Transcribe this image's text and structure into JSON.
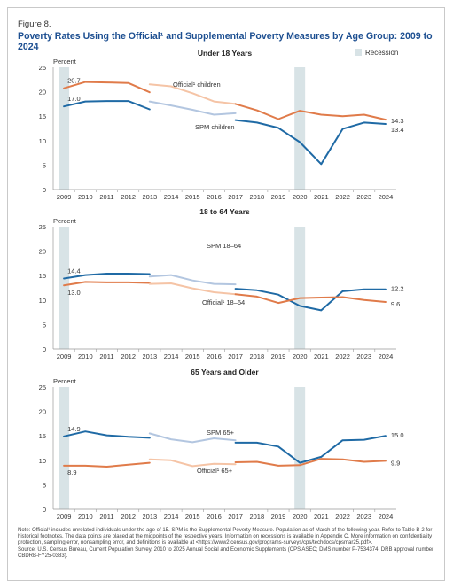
{
  "figure": {
    "label": "Figure 8.",
    "title": "Poverty Rates Using the Official¹ and Supplemental Poverty Measures by Age Group: 2009 to 2024"
  },
  "legend": {
    "recession": "Recession",
    "recession_color": "#d8e3e6"
  },
  "colors": {
    "official": "#e07b4a",
    "official_light": "#f5c4a6",
    "spm": "#1f6aa5",
    "spm_light": "#b3c6e0"
  },
  "chart_data": [
    {
      "type": "line",
      "title": "Under 18 Years",
      "ylabel": "Percent",
      "ylim": [
        0,
        25
      ],
      "yticks": [
        "0",
        "5",
        "10",
        "15",
        "20",
        "25"
      ],
      "x": [
        "2009",
        "2010",
        "2011",
        "2012",
        "2013",
        "2014",
        "2015",
        "2016",
        "2017",
        "2018",
        "2019",
        "2020",
        "2021",
        "2022",
        "2023",
        "2024"
      ],
      "recession": [
        2009,
        2020
      ],
      "series": [
        {
          "name": "Official¹ children",
          "kind": "official",
          "segments": [
            {
              "shade": "dark",
              "x": [
                2009,
                2010,
                2011,
                2012,
                2013
              ],
              "values": [
                20.7,
                22.0,
                21.9,
                21.8,
                19.9
              ]
            },
            {
              "shade": "light",
              "x": [
                2013,
                2014,
                2015,
                2016,
                2017
              ],
              "values": [
                21.5,
                21.1,
                19.7,
                18.0,
                17.5
              ]
            },
            {
              "shade": "dark",
              "x": [
                2017,
                2018,
                2019,
                2020,
                2021,
                2022,
                2023,
                2024
              ],
              "values": [
                17.5,
                16.2,
                14.4,
                16.1,
                15.3,
                15.0,
                15.3,
                14.3
              ]
            }
          ],
          "first_label": "20.7",
          "last_label": "14.3"
        },
        {
          "name": "SPM children",
          "kind": "spm",
          "segments": [
            {
              "shade": "dark",
              "x": [
                2009,
                2010,
                2011,
                2012,
                2013
              ],
              "values": [
                17.0,
                18.0,
                18.1,
                18.1,
                16.4
              ]
            },
            {
              "shade": "light",
              "x": [
                2013,
                2014,
                2015,
                2016,
                2017
              ],
              "values": [
                18.0,
                17.2,
                16.3,
                15.3,
                15.6
              ]
            },
            {
              "shade": "dark",
              "x": [
                2017,
                2018,
                2019,
                2020,
                2021,
                2022,
                2023,
                2024
              ],
              "values": [
                14.2,
                13.7,
                12.6,
                9.7,
                5.2,
                12.4,
                13.7,
                13.4
              ]
            }
          ],
          "first_label": "17.0",
          "last_label": "13.4"
        }
      ]
    },
    {
      "type": "line",
      "title": "18 to 64 Years",
      "ylabel": "Percent",
      "ylim": [
        0,
        25
      ],
      "yticks": [
        "0",
        "5",
        "10",
        "15",
        "20",
        "25"
      ],
      "x": [
        "2009",
        "2010",
        "2011",
        "2012",
        "2013",
        "2014",
        "2015",
        "2016",
        "2017",
        "2018",
        "2019",
        "2020",
        "2021",
        "2022",
        "2023",
        "2024"
      ],
      "recession": [
        2009,
        2020
      ],
      "series": [
        {
          "name": "SPM 18–64",
          "kind": "spm",
          "segments": [
            {
              "shade": "dark",
              "x": [
                2009,
                2010,
                2011,
                2012,
                2013
              ],
              "values": [
                14.4,
                15.1,
                15.4,
                15.4,
                15.3
              ]
            },
            {
              "shade": "light",
              "x": [
                2013,
                2014,
                2015,
                2016,
                2017
              ],
              "values": [
                14.8,
                15.1,
                14.0,
                13.3,
                13.2
              ]
            },
            {
              "shade": "dark",
              "x": [
                2017,
                2018,
                2019,
                2020,
                2021,
                2022,
                2023,
                2024
              ],
              "values": [
                12.3,
                12.0,
                11.1,
                8.8,
                7.9,
                11.8,
                12.2,
                12.2
              ]
            }
          ],
          "first_label": "14.4",
          "last_label": "12.2"
        },
        {
          "name": "Official¹ 18–64",
          "kind": "official",
          "segments": [
            {
              "shade": "dark",
              "x": [
                2009,
                2010,
                2011,
                2012,
                2013
              ],
              "values": [
                13.0,
                13.7,
                13.6,
                13.6,
                13.5
              ]
            },
            {
              "shade": "light",
              "x": [
                2013,
                2014,
                2015,
                2016,
                2017
              ],
              "values": [
                13.3,
                13.4,
                12.4,
                11.6,
                11.2
              ]
            },
            {
              "shade": "dark",
              "x": [
                2017,
                2018,
                2019,
                2020,
                2021,
                2022,
                2023,
                2024
              ],
              "values": [
                11.2,
                10.7,
                9.4,
                10.4,
                10.5,
                10.6,
                10.0,
                9.6
              ]
            }
          ],
          "first_label": "13.0",
          "last_label": "9.6"
        }
      ]
    },
    {
      "type": "line",
      "title": "65 Years and Older",
      "ylabel": "Percent",
      "ylim": [
        0,
        25
      ],
      "yticks": [
        "0",
        "5",
        "10",
        "15",
        "20",
        "25"
      ],
      "x": [
        "2009",
        "2010",
        "2011",
        "2012",
        "2013",
        "2014",
        "2015",
        "2016",
        "2017",
        "2018",
        "2019",
        "2020",
        "2021",
        "2022",
        "2023",
        "2024"
      ],
      "recession": [
        2009,
        2020
      ],
      "series": [
        {
          "name": "SPM 65+",
          "kind": "spm",
          "segments": [
            {
              "shade": "dark",
              "x": [
                2009,
                2010,
                2011,
                2012,
                2013
              ],
              "values": [
                14.9,
                15.9,
                15.1,
                14.8,
                14.6
              ]
            },
            {
              "shade": "light",
              "x": [
                2013,
                2014,
                2015,
                2016,
                2017
              ],
              "values": [
                15.5,
                14.3,
                13.7,
                14.5,
                14.1
              ]
            },
            {
              "shade": "dark",
              "x": [
                2017,
                2018,
                2019,
                2020,
                2021,
                2022,
                2023,
                2024
              ],
              "values": [
                13.6,
                13.6,
                12.8,
                9.5,
                10.7,
                14.1,
                14.2,
                15.0
              ]
            }
          ],
          "first_label": "14.9",
          "last_label": "15.0"
        },
        {
          "name": "Official¹ 65+",
          "kind": "official",
          "segments": [
            {
              "shade": "dark",
              "x": [
                2009,
                2010,
                2011,
                2012,
                2013
              ],
              "values": [
                8.9,
                8.9,
                8.7,
                9.1,
                9.5
              ]
            },
            {
              "shade": "light",
              "x": [
                2013,
                2014,
                2015,
                2016,
                2017
              ],
              "values": [
                10.2,
                10.0,
                8.8,
                9.3,
                9.2
              ]
            },
            {
              "shade": "dark",
              "x": [
                2017,
                2018,
                2019,
                2020,
                2021,
                2022,
                2023,
                2024
              ],
              "values": [
                9.6,
                9.7,
                8.9,
                9.0,
                10.3,
                10.2,
                9.7,
                9.9
              ]
            }
          ],
          "first_label": "8.9",
          "last_label": "9.9"
        }
      ]
    }
  ],
  "notes": {
    "note": "Note: Official¹ includes unrelated individuals under the age of 15. SPM is the Supplemental Poverty Measure. Population as of March of the following year. Refer to Table B-2 for historical footnotes. The data points are placed at the midpoints of the respective years. Information on recessions is available in Appendix C. More information on confidentiality protection, sampling error, nonsampling error, and definitions is available at <https://www2.census.gov/programs-surveys/cps/techdocs/cpsmar25.pdf>.",
    "source": "Source: U.S. Census Bureau, Current Population Survey, 2010 to 2025 Annual Social and Economic Supplements (CPS ASEC; DMS number P-7534374, DRB approval number CBDRB-FY25-0383)."
  }
}
